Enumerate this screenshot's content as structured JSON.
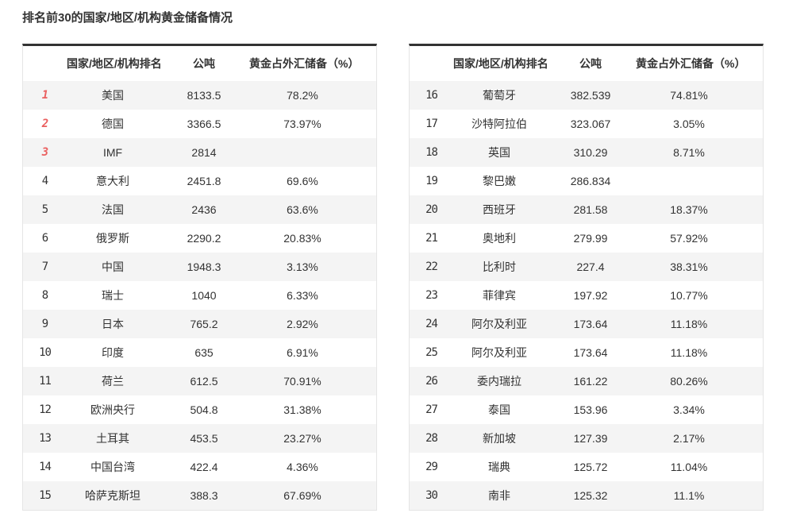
{
  "page_title": "排名前30的国家/地区/机构黄金储备情况",
  "table_headers": [
    "",
    "国家/地区/机构排名",
    "公吨",
    "黄金占外汇储备（%）"
  ],
  "style": {
    "accent_red": "#ea5f5f",
    "rank_gray": "#555555",
    "row_alt_bg": "#f4f4f4",
    "top_border": "#333333",
    "side_border": "#e5e5e5",
    "text": "#333333"
  },
  "chart_data": {
    "type": "table",
    "title": "排名前30的国家/地区/机构黄金储备情况",
    "columns": [
      "排名",
      "国家/地区/机构",
      "公吨",
      "黄金占外汇储备（%）"
    ],
    "layout": {
      "split": "rows 1-15 in left table, rows 16-30 in right table",
      "red_ranks": [
        1,
        2,
        3
      ],
      "rows_per_table": 15
    },
    "rows": [
      [
        "1",
        "美国",
        "8133.5",
        "78.2%"
      ],
      [
        "2",
        "德国",
        "3366.5",
        "73.97%"
      ],
      [
        "3",
        "IMF",
        "2814",
        ""
      ],
      [
        "4",
        "意大利",
        "2451.8",
        "69.6%"
      ],
      [
        "5",
        "法国",
        "2436",
        "63.6%"
      ],
      [
        "6",
        "俄罗斯",
        "2290.2",
        "20.83%"
      ],
      [
        "7",
        "中国",
        "1948.3",
        "3.13%"
      ],
      [
        "8",
        "瑞士",
        "1040",
        "6.33%"
      ],
      [
        "9",
        "日本",
        "765.2",
        "2.92%"
      ],
      [
        "10",
        "印度",
        "635",
        "6.91%"
      ],
      [
        "11",
        "荷兰",
        "612.5",
        "70.91%"
      ],
      [
        "12",
        "欧洲央行",
        "504.8",
        "31.38%"
      ],
      [
        "13",
        "土耳其",
        "453.5",
        "23.27%"
      ],
      [
        "14",
        "中国台湾",
        "422.4",
        "4.36%"
      ],
      [
        "15",
        "哈萨克斯坦",
        "388.3",
        "67.69%"
      ],
      [
        "16",
        "葡萄牙",
        "382.539",
        "74.81%"
      ],
      [
        "17",
        "沙特阿拉伯",
        "323.067",
        "3.05%"
      ],
      [
        "18",
        "英国",
        "310.29",
        "8.71%"
      ],
      [
        "19",
        "黎巴嫩",
        "286.834",
        ""
      ],
      [
        "20",
        "西班牙",
        "281.58",
        "18.37%"
      ],
      [
        "21",
        "奥地利",
        "279.99",
        "57.92%"
      ],
      [
        "22",
        "比利时",
        "227.4",
        "38.31%"
      ],
      [
        "23",
        "菲律宾",
        "197.92",
        "10.77%"
      ],
      [
        "24",
        "阿尔及利亚",
        "173.64",
        "11.18%"
      ],
      [
        "25",
        "阿尔及利亚",
        "173.64",
        "11.18%"
      ],
      [
        "26",
        "委内瑞拉",
        "161.22",
        "80.26%"
      ],
      [
        "27",
        "泰国",
        "153.96",
        "3.34%"
      ],
      [
        "28",
        "新加坡",
        "127.39",
        "2.17%"
      ],
      [
        "29",
        "瑞典",
        "125.72",
        "11.04%"
      ],
      [
        "30",
        "南非",
        "125.32",
        "11.1%"
      ]
    ]
  }
}
